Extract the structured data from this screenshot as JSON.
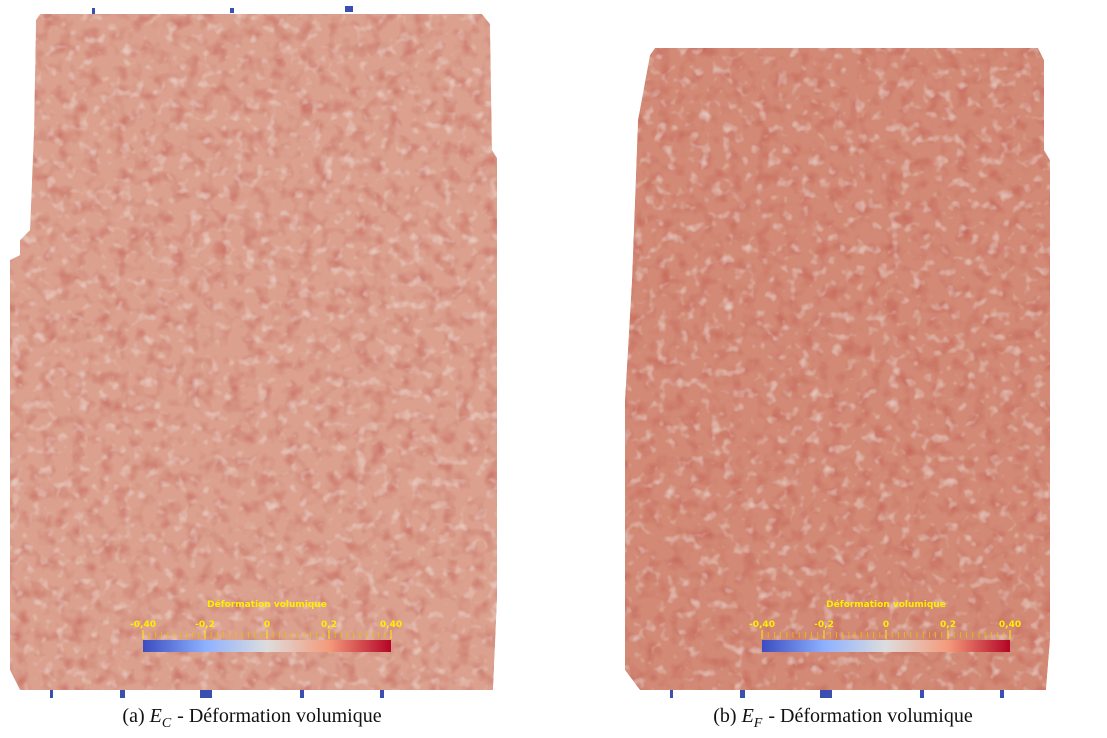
{
  "panels": [
    {
      "caption": {
        "label": "(a)",
        "symbol": "E",
        "subscript": "C",
        "text": "- Déformation volumique"
      },
      "colorbar": {
        "title": "Déformation volumique",
        "lim": [
          -0.4,
          0.4
        ],
        "ticks": [
          {
            "value": -0.4,
            "label": "-0,40"
          },
          {
            "value": -0.2,
            "label": "-0,2"
          },
          0,
          {
            "value": 0.2,
            "label": "0,2"
          },
          {
            "value": 0.4,
            "label": "0,40"
          }
        ]
      }
    },
    {
      "caption": {
        "label": "(b)",
        "symbol": "E",
        "subscript": "F",
        "text": "- Déformation volumique"
      },
      "colorbar": {
        "title": "Déformation volumique",
        "lim": [
          -0.4,
          0.4
        ],
        "ticks": [
          {
            "value": -0.4,
            "label": "-0,40"
          },
          {
            "value": -0.2,
            "label": "-0,2"
          },
          0,
          {
            "value": 0.2,
            "label": "0,2"
          },
          {
            "value": 0.4,
            "label": "0,40"
          }
        ]
      }
    }
  ]
}
